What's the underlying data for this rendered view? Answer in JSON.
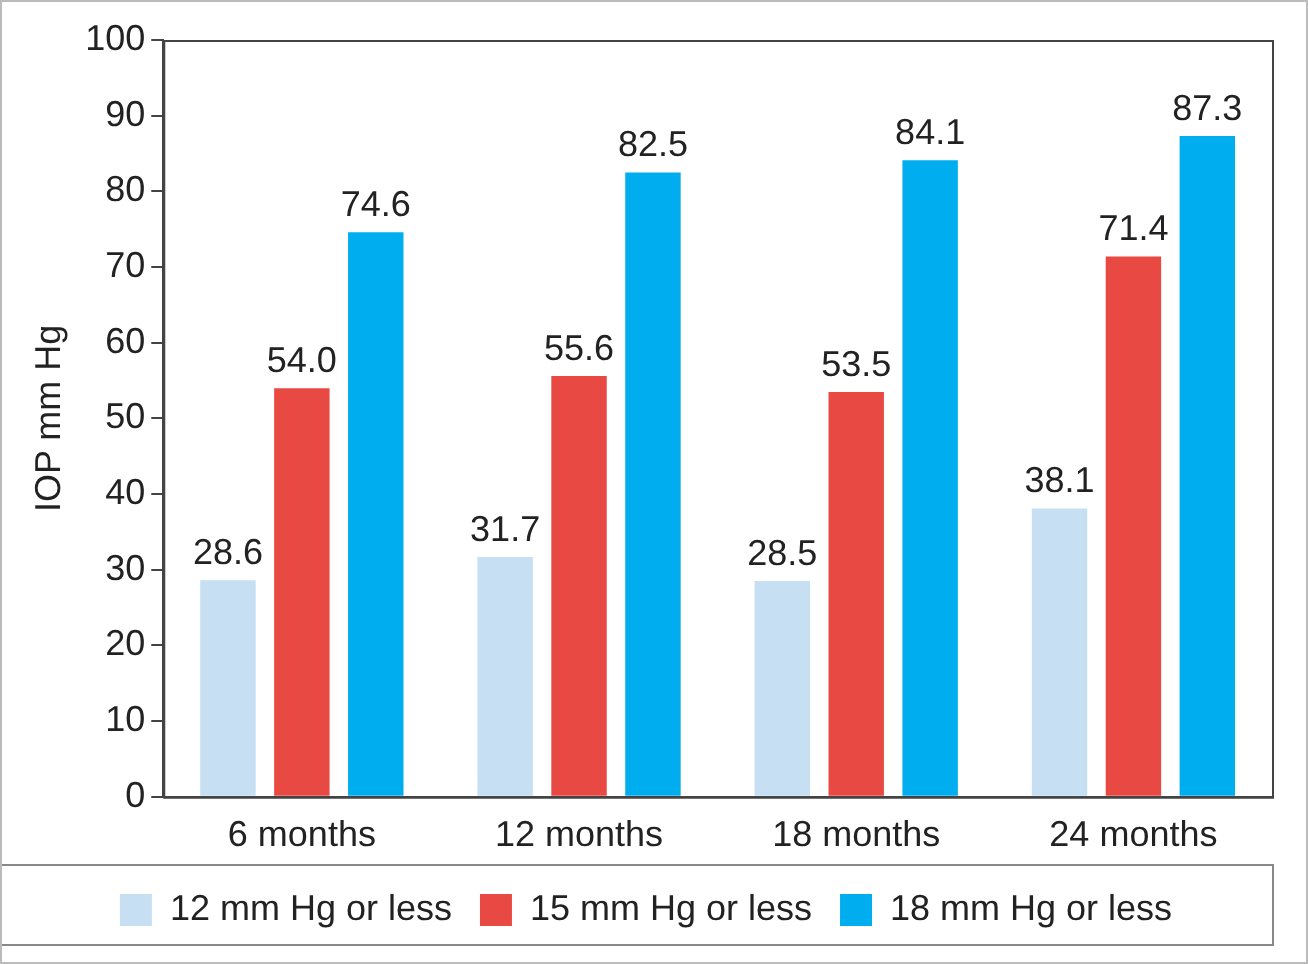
{
  "chart_data": {
    "type": "bar",
    "ylabel": "IOP mm Hg",
    "categories": [
      "6 months",
      "12 months",
      "18 months",
      "24 months"
    ],
    "series": [
      {
        "name": "12 mm Hg or less",
        "color": "#c6dff3",
        "values": [
          28.6,
          31.7,
          28.5,
          38.1
        ],
        "value_labels": [
          "28.6",
          "31.7",
          "28.5",
          "38.1"
        ]
      },
      {
        "name": "15 mm Hg or less",
        "color": "#e84a43",
        "values": [
          54.0,
          55.6,
          53.5,
          71.4
        ],
        "value_labels": [
          "54.0",
          "55.6",
          "53.5",
          "71.4"
        ]
      },
      {
        "name": "18 mm Hg or less",
        "color": "#00aeef",
        "values": [
          74.6,
          82.5,
          84.1,
          87.3
        ],
        "value_labels": [
          "74.6",
          "82.5",
          "84.1",
          "87.3"
        ]
      }
    ],
    "ylim": [
      0,
      100
    ],
    "yticks": [
      0,
      10,
      20,
      30,
      40,
      50,
      60,
      70,
      80,
      90,
      100
    ],
    "grid": false,
    "legend": "bottom"
  }
}
